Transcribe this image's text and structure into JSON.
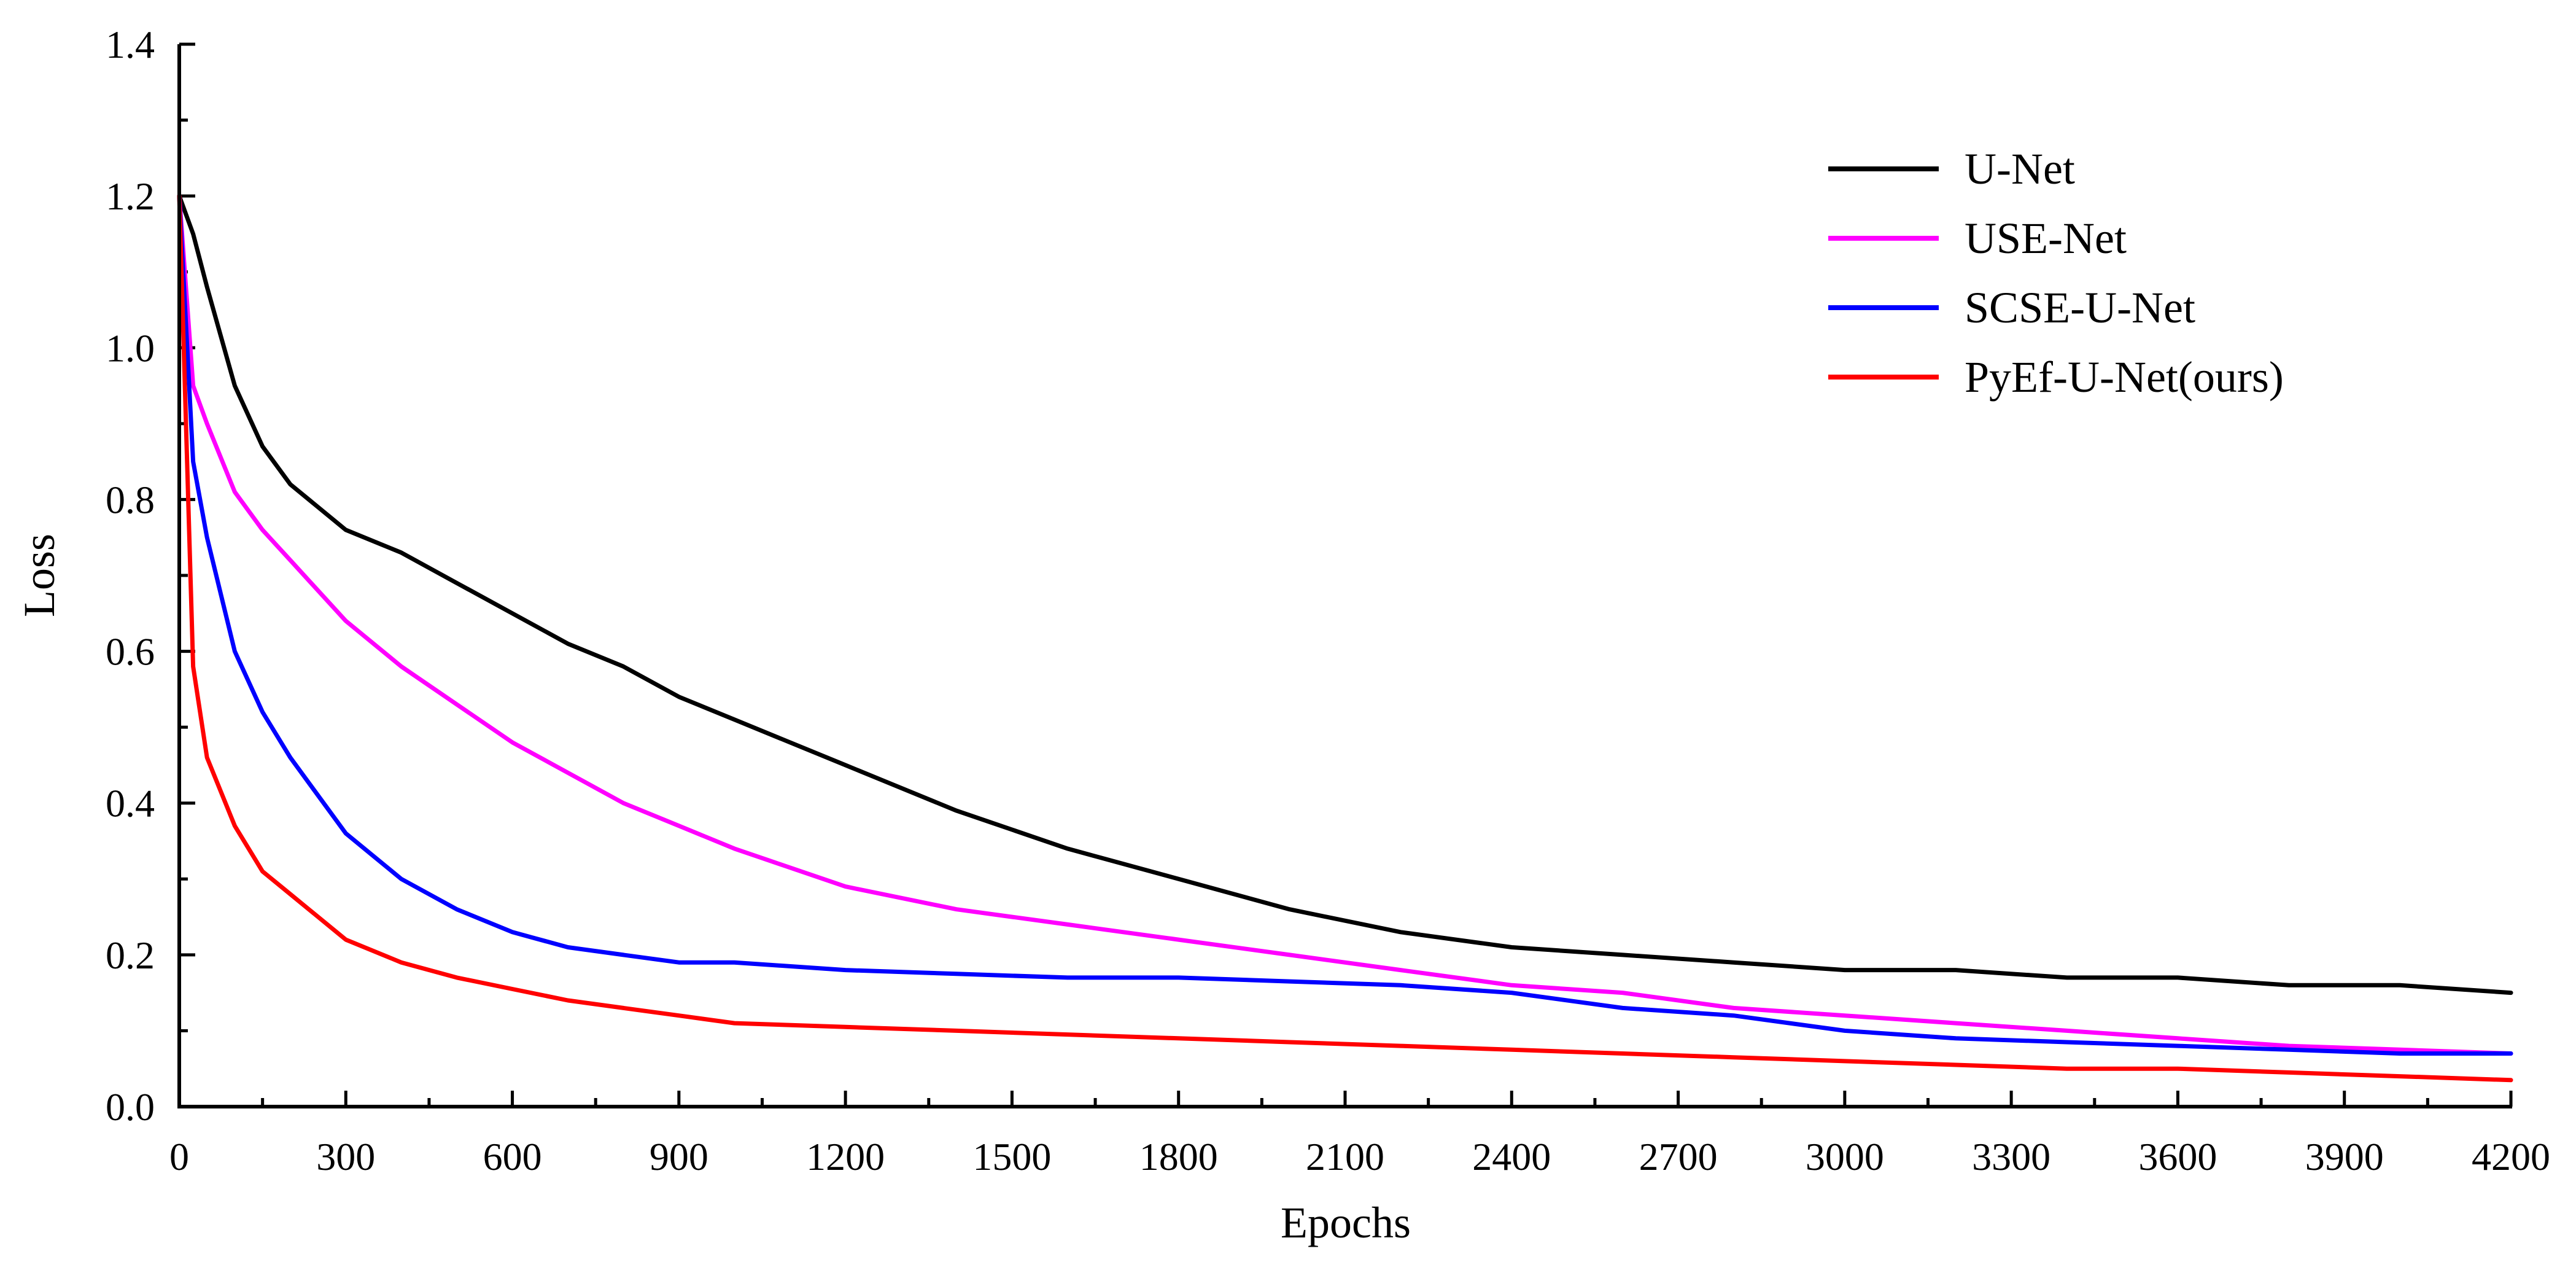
{
  "chart_data": {
    "type": "line",
    "title": "",
    "xlabel": "Epochs",
    "ylabel": "Loss",
    "xlim": [
      0,
      4200
    ],
    "ylim": [
      0.0,
      1.4
    ],
    "xticks": [
      0,
      300,
      600,
      900,
      1200,
      1500,
      1800,
      2100,
      2400,
      2700,
      3000,
      3300,
      3600,
      3900,
      4200
    ],
    "xtick_labels": [
      "0",
      "300",
      "600",
      "900",
      "1200",
      "1500",
      "1800",
      "2100",
      "2400",
      "2700",
      "3000",
      "3300",
      "3600",
      "3900",
      "4200"
    ],
    "yticks": [
      0.0,
      0.2,
      0.4,
      0.6,
      0.8,
      1.0,
      1.2,
      1.4
    ],
    "ytick_labels": [
      "0.0",
      "0.2",
      "0.4",
      "0.6",
      "0.8",
      "1.0",
      "1.2",
      "1.4"
    ],
    "grid": false,
    "legend_position": "top-right",
    "x": [
      0,
      25,
      50,
      100,
      150,
      200,
      300,
      400,
      500,
      600,
      700,
      800,
      900,
      1000,
      1200,
      1400,
      1600,
      1800,
      2000,
      2200,
      2400,
      2600,
      2800,
      3000,
      3200,
      3400,
      3600,
      3800,
      4000,
      4200
    ],
    "series": [
      {
        "name": "U-Net",
        "color": "#000000",
        "values": [
          1.2,
          1.15,
          1.08,
          0.95,
          0.87,
          0.82,
          0.76,
          0.73,
          0.69,
          0.65,
          0.61,
          0.58,
          0.54,
          0.51,
          0.45,
          0.39,
          0.34,
          0.3,
          0.26,
          0.23,
          0.21,
          0.2,
          0.19,
          0.18,
          0.18,
          0.17,
          0.17,
          0.16,
          0.16,
          0.15
        ]
      },
      {
        "name": "USE-Net",
        "color": "#ff00ff",
        "values": [
          1.2,
          0.95,
          0.9,
          0.81,
          0.76,
          0.72,
          0.64,
          0.58,
          0.53,
          0.48,
          0.44,
          0.4,
          0.37,
          0.34,
          0.29,
          0.26,
          0.24,
          0.22,
          0.2,
          0.18,
          0.16,
          0.15,
          0.13,
          0.12,
          0.11,
          0.1,
          0.09,
          0.08,
          0.075,
          0.07
        ]
      },
      {
        "name": "SCSE-U-Net",
        "color": "#0000ff",
        "values": [
          1.2,
          0.85,
          0.75,
          0.6,
          0.52,
          0.46,
          0.36,
          0.3,
          0.26,
          0.23,
          0.21,
          0.2,
          0.19,
          0.19,
          0.18,
          0.175,
          0.17,
          0.17,
          0.165,
          0.16,
          0.15,
          0.13,
          0.12,
          0.1,
          0.09,
          0.085,
          0.08,
          0.075,
          0.07,
          0.07
        ]
      },
      {
        "name": "PyEf-U-Net(ours)",
        "color": "#ff0000",
        "values": [
          1.2,
          0.58,
          0.46,
          0.37,
          0.31,
          0.28,
          0.22,
          0.19,
          0.17,
          0.155,
          0.14,
          0.13,
          0.12,
          0.11,
          0.105,
          0.1,
          0.095,
          0.09,
          0.085,
          0.08,
          0.075,
          0.07,
          0.065,
          0.06,
          0.055,
          0.05,
          0.05,
          0.045,
          0.04,
          0.035
        ]
      }
    ]
  }
}
